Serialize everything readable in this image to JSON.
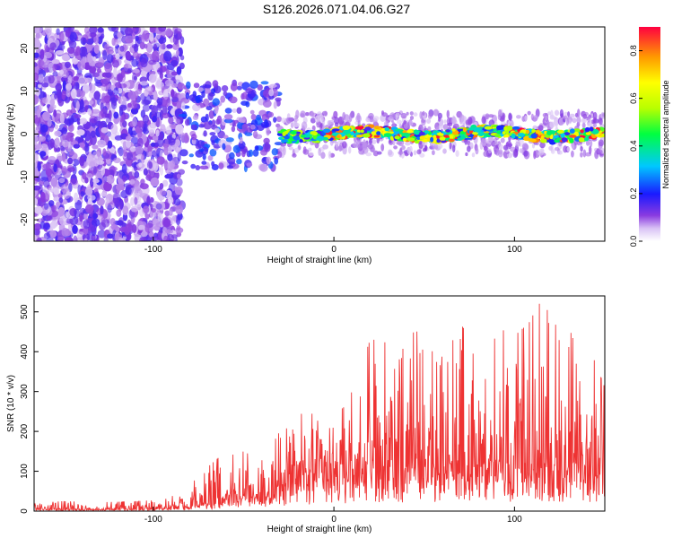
{
  "title": "S126.2026.071.04.06.G27",
  "colors": {
    "snr_line": "#ee3333",
    "dot_main": "#7b1fe0",
    "dot_light": "#c9a6f2"
  },
  "chart_data": [
    {
      "id": "spectrogram",
      "type": "heatmap",
      "title": "S126.2026.071.04.06.G27",
      "xlabel": "Height of straight line (km)",
      "ylabel": "Frequency (Hz)",
      "xlim": [
        -166,
        150
      ],
      "ylim": [
        -25,
        25
      ],
      "xticks": [
        -100,
        0,
        100
      ],
      "yticks": [
        -20,
        -10,
        0,
        10,
        20
      ],
      "description_of_data": "Broad noisy scatter of normalized spectral amplitude below about -85 km; a narrow ridge near 0 Hz forms from about -30 km upward with peak amplitudes near 0.9",
      "ridge": {
        "x_start": -30,
        "x_end": 150,
        "frequency_hz": 0,
        "peak_amplitude": 0.9
      },
      "colorbar": {
        "label": "Normalized spectral amplitude",
        "range": [
          0.0,
          0.9
        ],
        "ticks": [
          "0.0",
          "0.2",
          "0.4",
          "0.6",
          "0.8"
        ]
      }
    },
    {
      "id": "snr",
      "type": "line",
      "xlabel": "Height of straight line (km)",
      "ylabel": "SNR (10 * v/v)",
      "xlim": [
        -166,
        150
      ],
      "ylim": [
        0,
        540
      ],
      "xticks": [
        -100,
        0,
        100
      ],
      "yticks": [
        0,
        100,
        200,
        300,
        400,
        500
      ],
      "series": [
        {
          "name": "SNR",
          "x": [
            -166,
            -150,
            -130,
            -110,
            -95,
            -85,
            -80,
            -75,
            -70,
            -65,
            -60,
            -55,
            -50,
            -45,
            -40,
            -35,
            -30,
            -25,
            -20,
            -15,
            -10,
            -5,
            0,
            5,
            10,
            15,
            20,
            25,
            30,
            35,
            40,
            45,
            50,
            55,
            60,
            65,
            70,
            75,
            80,
            85,
            90,
            95,
            100,
            105,
            110,
            115,
            120,
            125,
            130,
            135,
            140,
            145,
            150
          ],
          "y": [
            10,
            12,
            10,
            12,
            14,
            25,
            30,
            40,
            45,
            55,
            70,
            80,
            90,
            95,
            100,
            110,
            130,
            150,
            170,
            180,
            190,
            200,
            210,
            215,
            220,
            225,
            230,
            230,
            235,
            240,
            245,
            245,
            250,
            250,
            255,
            255,
            255,
            260,
            260,
            260,
            255,
            255,
            250,
            250,
            255,
            260,
            260,
            255,
            250,
            250,
            245,
            240,
            240
          ],
          "envelope": [
            20,
            25,
            22,
            25,
            28,
            55,
            70,
            90,
            110,
            130,
            150,
            140,
            150,
            140,
            150,
            160,
            200,
            210,
            240,
            250,
            240,
            220,
            230,
            260,
            300,
            360,
            430,
            430,
            420,
            420,
            400,
            460,
            410,
            400,
            460,
            420,
            470,
            440,
            460,
            480,
            470,
            470,
            440,
            460,
            490,
            530,
            490,
            450,
            460,
            410,
            420,
            370,
            310
          ]
        }
      ]
    }
  ]
}
